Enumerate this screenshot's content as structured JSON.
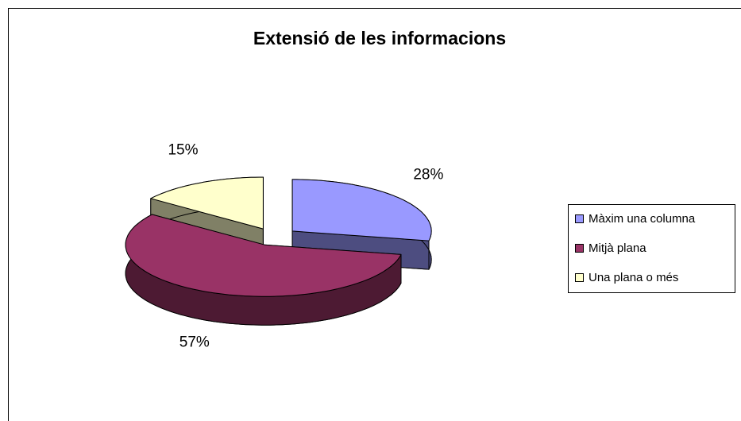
{
  "chart_data": {
    "type": "pie",
    "title": "Extensió de les informacions",
    "categories": [
      "Màxim una columna",
      "Mitjà plana",
      "Una plana o més"
    ],
    "values": [
      28,
      57,
      15
    ],
    "value_labels": [
      "28%",
      "57%",
      "15%"
    ],
    "colors": [
      "#9999ff",
      "#993366",
      "#ffffcc"
    ],
    "legend": "right"
  }
}
